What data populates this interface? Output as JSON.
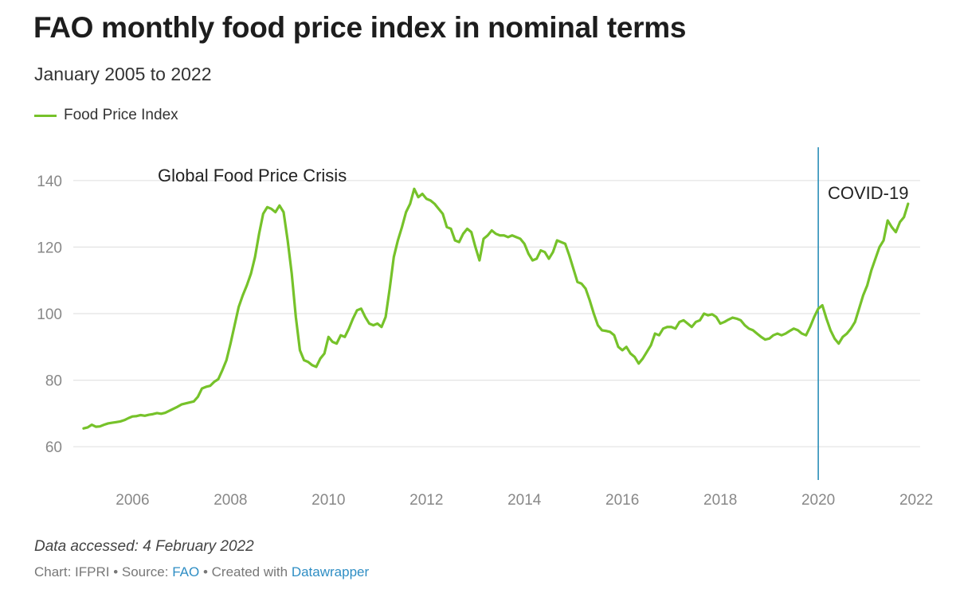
{
  "title": "FAO monthly food price index in nominal terms",
  "subtitle": "January 2005 to 2022",
  "legend": [
    {
      "label": "Food Price Index",
      "color": "#76c22a"
    }
  ],
  "colors": {
    "line": "#76c22a",
    "covid_marker": "#2b8fb8",
    "grid": "#e3e3e3"
  },
  "annotations": {
    "crisis": "Global Food Price Crisis",
    "covid": "COVID-19"
  },
  "footer": {
    "note": "Data accessed: 4 February 2022",
    "chart_by": "Chart: IFPRI",
    "source_prefix": "Source:",
    "source": "FAO",
    "created_prefix": "Created with",
    "tool": "Datawrapper",
    "separator": "•"
  },
  "chart_data": {
    "type": "line",
    "title": "FAO monthly food price index in nominal terms",
    "subtitle": "January 2005 to 2022",
    "xlabel": "",
    "ylabel": "",
    "xlim": [
      2004.92,
      2022.08
    ],
    "ylim": [
      50,
      150
    ],
    "x_ticks": [
      2006,
      2008,
      2010,
      2012,
      2014,
      2016,
      2018,
      2020,
      2022
    ],
    "y_ticks": [
      60,
      80,
      100,
      120,
      140
    ],
    "grid": true,
    "legend_position": "top-left",
    "vline": {
      "x": 2020.0,
      "label": "COVID-19"
    },
    "series": [
      {
        "name": "Food Price Index",
        "x_start": 2005.0,
        "x_step_months": 1,
        "values": [
          65.5,
          65.8,
          66.6,
          66.0,
          66.1,
          66.6,
          67.0,
          67.2,
          67.4,
          67.6,
          68.0,
          68.6,
          69.1,
          69.2,
          69.5,
          69.3,
          69.6,
          69.8,
          70.1,
          69.9,
          70.2,
          70.8,
          71.4,
          72.0,
          72.7,
          73.0,
          73.3,
          73.6,
          75.0,
          77.5,
          78.0,
          78.3,
          79.5,
          80.3,
          83.0,
          86.0,
          91.0,
          96.5,
          102.0,
          105.5,
          108.5,
          112.0,
          117.0,
          124.0,
          130.0,
          132.0,
          131.5,
          130.5,
          132.5,
          130.5,
          122.0,
          112.0,
          99.0,
          89.0,
          86.0,
          85.5,
          84.5,
          84.0,
          86.5,
          88.0,
          93.0,
          91.5,
          91.0,
          93.5,
          93.0,
          95.5,
          98.5,
          101.0,
          101.5,
          99.0,
          97.0,
          96.5,
          97.0,
          96.0,
          99.0,
          107.5,
          117.0,
          122.0,
          126.0,
          130.5,
          133.0,
          137.5,
          135.0,
          136.0,
          134.5,
          134.0,
          133.0,
          131.5,
          130.0,
          126.0,
          125.5,
          122.0,
          121.5,
          124.0,
          125.5,
          124.5,
          120.0,
          116.0,
          122.5,
          123.5,
          125.0,
          124.0,
          123.5,
          123.5,
          123.0,
          123.5,
          123.0,
          122.5,
          121.0,
          118.0,
          116.0,
          116.5,
          119.0,
          118.5,
          116.5,
          118.5,
          122.0,
          121.5,
          121.0,
          117.5,
          113.5,
          109.5,
          109.0,
          107.5,
          104.0,
          100.0,
          96.5,
          95.0,
          94.8,
          94.5,
          93.5,
          90.0,
          89.0,
          90.0,
          88.0,
          87.0,
          85.0,
          86.5,
          88.5,
          90.5,
          94.0,
          93.5,
          95.5,
          96.0,
          96.0,
          95.5,
          97.5,
          98.0,
          97.0,
          96.0,
          97.5,
          98.0,
          100.0,
          99.5,
          99.8,
          99.0,
          97.0,
          97.5,
          98.2,
          98.8,
          98.5,
          98.0,
          96.5,
          95.5,
          95.0,
          94.0,
          93.0,
          92.2,
          92.5,
          93.5,
          94.0,
          93.5,
          94.0,
          94.8,
          95.5,
          95.0,
          94.0,
          93.5,
          96.0,
          99.0,
          101.5,
          102.5,
          98.5,
          95.0,
          92.5,
          91.0,
          93.0,
          94.0,
          95.5,
          97.5,
          101.5,
          105.5,
          108.5,
          113.0,
          116.5,
          120.0,
          122.0,
          128.0,
          126.0,
          124.5,
          127.5,
          129.0,
          133.0
        ]
      }
    ]
  }
}
